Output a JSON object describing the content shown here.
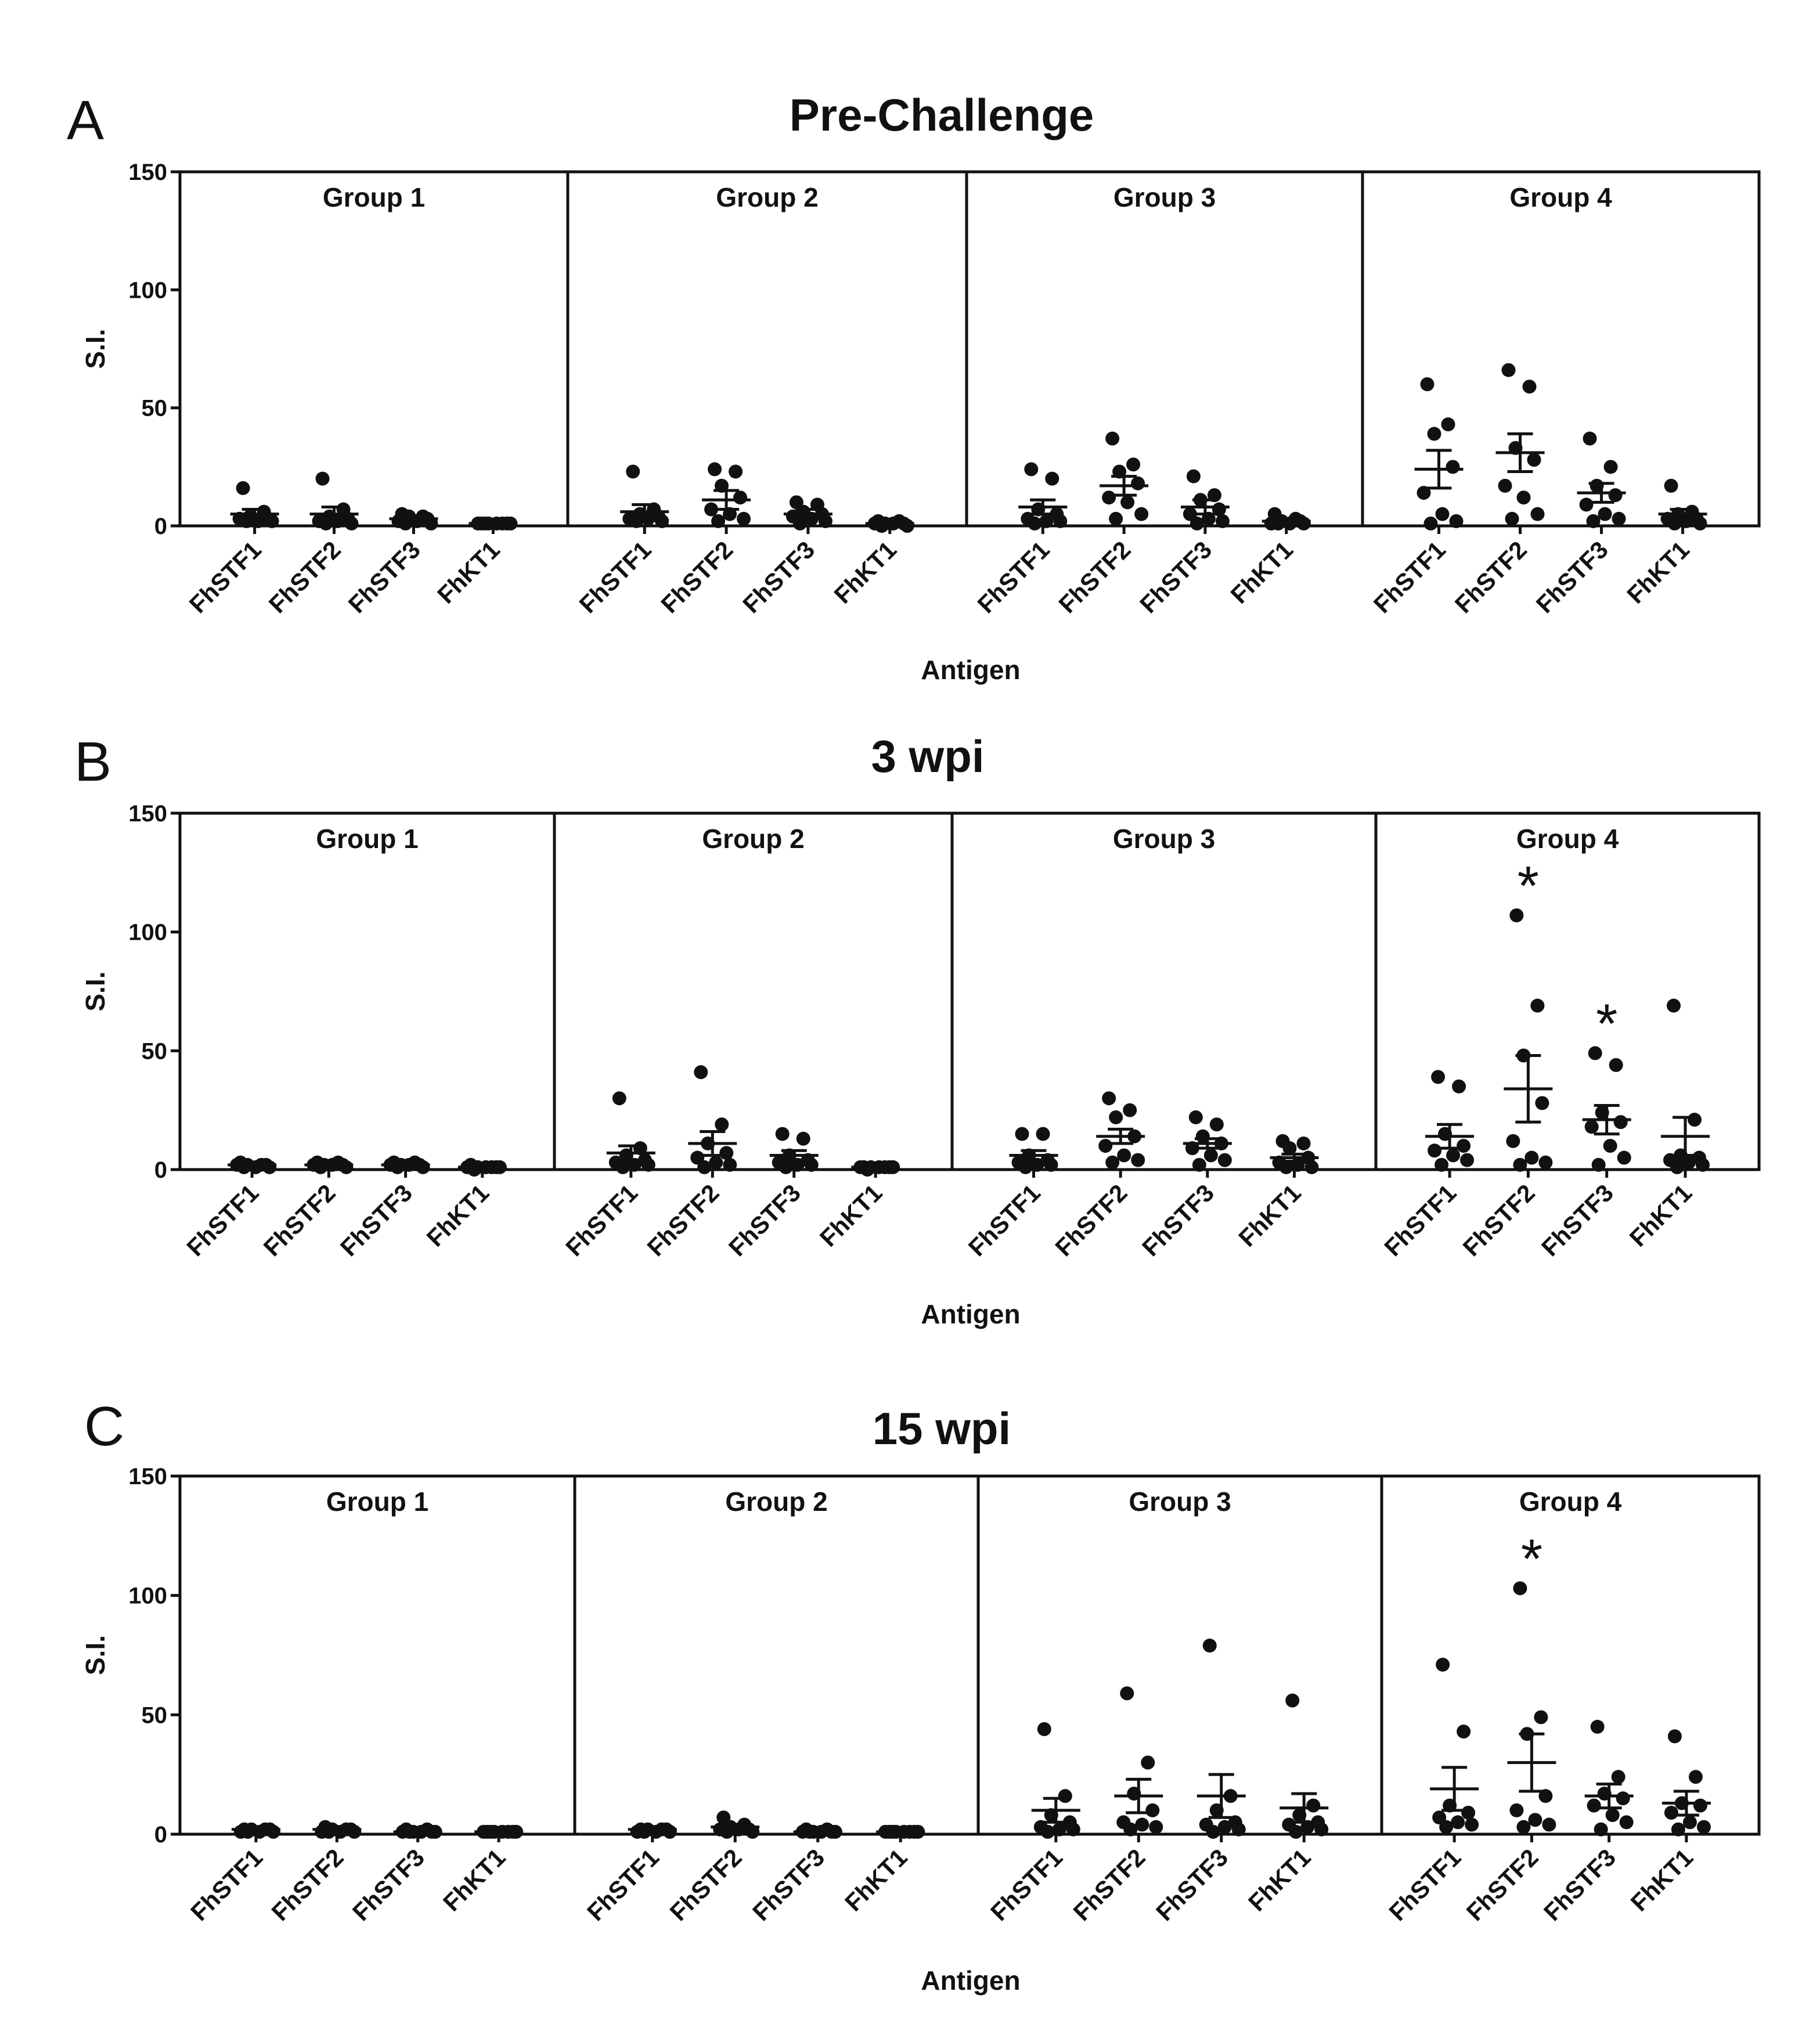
{
  "figure": {
    "colors": {
      "axis": "#111111",
      "point": "#111111",
      "background": "#ffffff"
    }
  },
  "chart_data": [
    {
      "type": "scatter",
      "panel": "A",
      "title": "Pre-Challenge",
      "ylabel": "S.I.",
      "xlabel": "Antigen",
      "ylim": [
        0,
        150
      ],
      "yticks": [
        0,
        50,
        100,
        150
      ],
      "categories": [
        "FhSTF1",
        "FhSTF2",
        "FhSTF3",
        "FhKT1"
      ],
      "groups": [
        {
          "name": "Group 1",
          "significance": [],
          "series": [
            {
              "antigen": "FhSTF1",
              "mean": 5,
              "sem": 2,
              "points": [
                16,
                6,
                4,
                3,
                3,
                2,
                2,
                2
              ]
            },
            {
              "antigen": "FhSTF2",
              "mean": 5,
              "sem": 3,
              "points": [
                20,
                7,
                4,
                3,
                2,
                2,
                1,
                1
              ]
            },
            {
              "antigen": "FhSTF3",
              "mean": 3,
              "sem": 1,
              "points": [
                5,
                4,
                4,
                3,
                2,
                2,
                1,
                1
              ]
            },
            {
              "antigen": "FhKT1",
              "mean": 1,
              "sem": 0.2,
              "points": [
                1,
                1,
                1,
                1,
                1,
                1,
                1,
                1
              ]
            }
          ]
        },
        {
          "name": "Group 2",
          "significance": [],
          "series": [
            {
              "antigen": "FhSTF1",
              "mean": 6,
              "sem": 3,
              "points": [
                23,
                7,
                5,
                4,
                3,
                3,
                2,
                2
              ]
            },
            {
              "antigen": "FhSTF2",
              "mean": 11,
              "sem": 4,
              "points": [
                24,
                23,
                17,
                12,
                7,
                5,
                3,
                2
              ]
            },
            {
              "antigen": "FhSTF3",
              "mean": 5,
              "sem": 2,
              "points": [
                10,
                9,
                6,
                5,
                4,
                3,
                2,
                1
              ]
            },
            {
              "antigen": "FhKT1",
              "mean": 1,
              "sem": 0.4,
              "points": [
                2,
                2,
                1,
                1,
                1,
                1,
                0,
                0
              ]
            }
          ]
        },
        {
          "name": "Group 3",
          "significance": [],
          "series": [
            {
              "antigen": "FhSTF1",
              "mean": 8,
              "sem": 3,
              "points": [
                24,
                20,
                7,
                5,
                3,
                2,
                2,
                1
              ]
            },
            {
              "antigen": "FhSTF2",
              "mean": 17,
              "sem": 4,
              "points": [
                37,
                26,
                23,
                18,
                12,
                10,
                5,
                3
              ]
            },
            {
              "antigen": "FhSTF3",
              "mean": 8,
              "sem": 3,
              "points": [
                21,
                13,
                11,
                7,
                5,
                3,
                2,
                1
              ]
            },
            {
              "antigen": "FhKT1",
              "mean": 2,
              "sem": 1,
              "points": [
                5,
                3,
                2,
                2,
                1,
                1,
                1,
                1
              ]
            }
          ]
        },
        {
          "name": "Group 4",
          "significance": [],
          "series": [
            {
              "antigen": "FhSTF1",
              "mean": 24,
              "sem": 8,
              "points": [
                60,
                43,
                39,
                25,
                14,
                5,
                2,
                1
              ]
            },
            {
              "antigen": "FhSTF2",
              "mean": 31,
              "sem": 8,
              "points": [
                66,
                59,
                33,
                28,
                17,
                12,
                5,
                3
              ]
            },
            {
              "antigen": "FhSTF3",
              "mean": 14,
              "sem": 4,
              "points": [
                37,
                25,
                17,
                13,
                9,
                5,
                3,
                2
              ]
            },
            {
              "antigen": "FhKT1",
              "mean": 5,
              "sem": 2,
              "points": [
                17,
                6,
                5,
                3,
                3,
                2,
                1,
                1
              ]
            }
          ]
        }
      ]
    },
    {
      "type": "scatter",
      "panel": "B",
      "title": "3 wpi",
      "ylabel": "S.I.",
      "xlabel": "Antigen",
      "ylim": [
        0,
        150
      ],
      "yticks": [
        0,
        50,
        100,
        150
      ],
      "categories": [
        "FhSTF1",
        "FhSTF2",
        "FhSTF3",
        "FhKT1"
      ],
      "groups": [
        {
          "name": "Group 1",
          "significance": [],
          "series": [
            {
              "antigen": "FhSTF1",
              "mean": 2,
              "sem": 0.3,
              "points": [
                3,
                2,
                2,
                2,
                2,
                1,
                1,
                1
              ]
            },
            {
              "antigen": "FhSTF2",
              "mean": 2,
              "sem": 0.3,
              "points": [
                3,
                3,
                2,
                2,
                2,
                2,
                1,
                1
              ]
            },
            {
              "antigen": "FhSTF3",
              "mean": 2,
              "sem": 0.3,
              "points": [
                3,
                3,
                2,
                2,
                2,
                2,
                1,
                1
              ]
            },
            {
              "antigen": "FhKT1",
              "mean": 1,
              "sem": 0.2,
              "points": [
                2,
                1,
                1,
                1,
                1,
                1,
                1,
                0
              ]
            }
          ]
        },
        {
          "name": "Group 2",
          "significance": [],
          "series": [
            {
              "antigen": "FhSTF1",
              "mean": 7,
              "sem": 3,
              "points": [
                30,
                9,
                6,
                4,
                3,
                2,
                2,
                1
              ]
            },
            {
              "antigen": "FhSTF2",
              "mean": 11,
              "sem": 5,
              "points": [
                41,
                19,
                11,
                7,
                5,
                3,
                2,
                1
              ]
            },
            {
              "antigen": "FhSTF3",
              "mean": 6,
              "sem": 2,
              "points": [
                15,
                13,
                6,
                4,
                3,
                2,
                2,
                1
              ]
            },
            {
              "antigen": "FhKT1",
              "mean": 1,
              "sem": 0.2,
              "points": [
                1,
                1,
                1,
                1,
                1,
                1,
                1,
                0
              ]
            }
          ]
        },
        {
          "name": "Group 3",
          "significance": [],
          "series": [
            {
              "antigen": "FhSTF1",
              "mean": 6,
              "sem": 2,
              "points": [
                15,
                15,
                6,
                4,
                3,
                2,
                2,
                1
              ]
            },
            {
              "antigen": "FhSTF2",
              "mean": 14,
              "sem": 3,
              "points": [
                30,
                25,
                22,
                14,
                10,
                6,
                4,
                3
              ]
            },
            {
              "antigen": "FhSTF3",
              "mean": 11,
              "sem": 2,
              "points": [
                22,
                19,
                14,
                11,
                9,
                6,
                4,
                2
              ]
            },
            {
              "antigen": "FhKT1",
              "mean": 5,
              "sem": 1.5,
              "points": [
                12,
                11,
                9,
                5,
                3,
                2,
                1,
                1
              ]
            }
          ]
        },
        {
          "name": "Group 4",
          "significance": [
            "FhSTF2",
            "FhSTF3"
          ],
          "series": [
            {
              "antigen": "FhSTF1",
              "mean": 14,
              "sem": 5,
              "points": [
                39,
                35,
                15,
                10,
                8,
                6,
                4,
                2
              ]
            },
            {
              "antigen": "FhSTF2",
              "mean": 34,
              "sem": 14,
              "points": [
                107,
                69,
                48,
                28,
                12,
                5,
                3,
                2
              ]
            },
            {
              "antigen": "FhSTF3",
              "mean": 21,
              "sem": 6,
              "points": [
                49,
                44,
                24,
                20,
                18,
                10,
                5,
                2
              ]
            },
            {
              "antigen": "FhKT1",
              "mean": 14,
              "sem": 8,
              "points": [
                69,
                21,
                6,
                5,
                4,
                3,
                2,
                1
              ]
            }
          ]
        }
      ]
    },
    {
      "type": "scatter",
      "panel": "C",
      "title": "15 wpi",
      "ylabel": "S.I.",
      "xlabel": "Antigen",
      "ylim": [
        0,
        150
      ],
      "yticks": [
        0,
        50,
        100,
        150
      ],
      "categories": [
        "FhSTF1",
        "FhSTF2",
        "FhSTF3",
        "FhKT1"
      ],
      "groups": [
        {
          "name": "Group 1",
          "significance": [],
          "series": [
            {
              "antigen": "FhSTF1",
              "mean": 2,
              "sem": 0.3,
              "points": [
                2,
                2,
                2,
                2,
                1,
                1,
                1,
                1
              ]
            },
            {
              "antigen": "FhSTF2",
              "mean": 2,
              "sem": 0.4,
              "points": [
                3,
                2,
                2,
                2,
                1,
                1,
                1,
                1
              ]
            },
            {
              "antigen": "FhSTF3",
              "mean": 1,
              "sem": 0.2,
              "points": [
                2,
                2,
                1,
                1,
                1,
                1,
                1,
                1
              ]
            },
            {
              "antigen": "FhKT1",
              "mean": 1,
              "sem": 0.2,
              "points": [
                1,
                1,
                1,
                1,
                1,
                1,
                1,
                1
              ]
            }
          ]
        },
        {
          "name": "Group 2",
          "significance": [],
          "series": [
            {
              "antigen": "FhSTF1",
              "mean": 2,
              "sem": 0.3,
              "points": [
                2,
                2,
                2,
                2,
                1,
                1,
                1,
                1
              ]
            },
            {
              "antigen": "FhSTF2",
              "mean": 3,
              "sem": 0.8,
              "points": [
                7,
                4,
                3,
                2,
                2,
                2,
                1,
                1
              ]
            },
            {
              "antigen": "FhSTF3",
              "mean": 1,
              "sem": 0.3,
              "points": [
                2,
                2,
                1,
                1,
                1,
                1,
                1,
                1
              ]
            },
            {
              "antigen": "FhKT1",
              "mean": 1,
              "sem": 0.2,
              "points": [
                1,
                1,
                1,
                1,
                1,
                1,
                1,
                1
              ]
            }
          ]
        },
        {
          "name": "Group 3",
          "significance": [],
          "series": [
            {
              "antigen": "FhSTF1",
              "mean": 10,
              "sem": 5,
              "points": [
                44,
                16,
                8,
                5,
                3,
                2,
                2,
                1
              ]
            },
            {
              "antigen": "FhSTF2",
              "mean": 16,
              "sem": 7,
              "points": [
                59,
                30,
                17,
                10,
                5,
                4,
                3,
                2
              ]
            },
            {
              "antigen": "FhSTF3",
              "mean": 16,
              "sem": 9,
              "points": [
                79,
                16,
                10,
                5,
                4,
                3,
                2,
                1
              ]
            },
            {
              "antigen": "FhKT1",
              "mean": 11,
              "sem": 6,
              "points": [
                56,
                12,
                8,
                5,
                4,
                3,
                2,
                1
              ]
            }
          ]
        },
        {
          "name": "Group 4",
          "significance": [
            "FhSTF2"
          ],
          "series": [
            {
              "antigen": "FhSTF1",
              "mean": 19,
              "sem": 9,
              "points": [
                71,
                43,
                12,
                9,
                7,
                5,
                4,
                3
              ]
            },
            {
              "antigen": "FhSTF2",
              "mean": 30,
              "sem": 12,
              "points": [
                103,
                49,
                42,
                16,
                10,
                6,
                4,
                3
              ]
            },
            {
              "antigen": "FhSTF3",
              "mean": 16,
              "sem": 5,
              "points": [
                45,
                24,
                17,
                15,
                12,
                8,
                5,
                2
              ]
            },
            {
              "antigen": "FhKT1",
              "mean": 13,
              "sem": 5,
              "points": [
                41,
                24,
                13,
                12,
                9,
                5,
                3,
                2
              ]
            }
          ]
        }
      ]
    }
  ]
}
